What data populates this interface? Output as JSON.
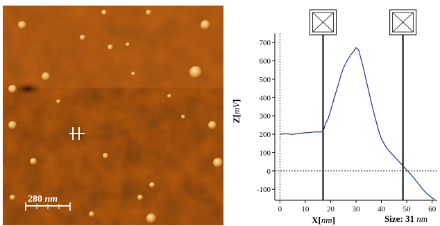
{
  "afm_image": {
    "scale_bar": {
      "value": "280",
      "unit": "nm"
    },
    "colors": {
      "base": "#b85a12",
      "light": "#e08a2a",
      "dark": "#5a1e06",
      "particle": "#f7d9a0",
      "marker": "#ffffff"
    }
  },
  "chart_data": {
    "type": "line",
    "xlabel": "X",
    "xlabel_unit": "nm",
    "ylabel": "Z",
    "ylabel_unit": "mV",
    "xlim": [
      -2,
      62
    ],
    "ylim": [
      -160,
      750
    ],
    "xticks": [
      0,
      10,
      20,
      30,
      40,
      50,
      60
    ],
    "yticks": [
      -100,
      0,
      100,
      200,
      300,
      400,
      500,
      600,
      700
    ],
    "series": [
      {
        "x": [
          0,
          2,
          5,
          8,
          10,
          12,
          14,
          16,
          17,
          17.5,
          18,
          19,
          20,
          21,
          22,
          23,
          24,
          25,
          26,
          27,
          28,
          29,
          30,
          31,
          32,
          33,
          34,
          35,
          36,
          37,
          38,
          39,
          40,
          41,
          42,
          43,
          44,
          45,
          46,
          47,
          48,
          49,
          50,
          52,
          54,
          56,
          58,
          60,
          61
        ],
        "y": [
          200,
          203,
          200,
          205,
          208,
          210,
          213,
          212,
          215,
          235,
          258,
          285,
          328,
          378,
          425,
          470,
          520,
          560,
          588,
          612,
          635,
          650,
          672,
          660,
          610,
          555,
          495,
          435,
          375,
          318,
          265,
          215,
          175,
          150,
          125,
          110,
          95,
          80,
          65,
          50,
          35,
          20,
          5,
          -25,
          -60,
          -95,
          -125,
          -148,
          -155
        ],
        "color": "#2a3f8f"
      }
    ],
    "zero_line": 0,
    "cursors": [
      {
        "x": 17
      },
      {
        "x": 48.5
      }
    ],
    "size_label": {
      "prefix": "Size:",
      "value": "31",
      "unit": "nm"
    }
  }
}
